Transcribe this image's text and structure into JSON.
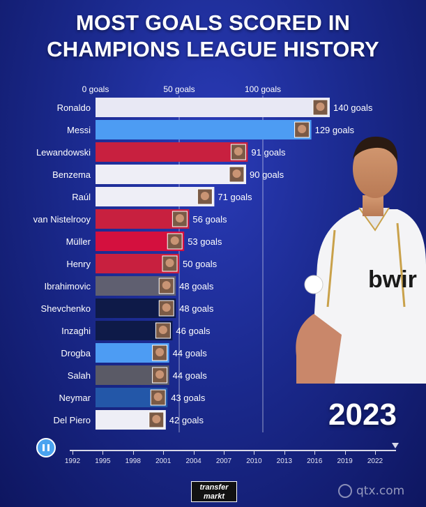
{
  "header": {
    "title_line1": "MOST GOALS SCORED IN",
    "title_line2": "CHAMPIONS LEAGUE HISTORY"
  },
  "year_display": "2023",
  "timeline": {
    "labels": [
      "1992",
      "1995",
      "1998",
      "2001",
      "2004",
      "2007",
      "2010",
      "2013",
      "2016",
      "2019",
      "2022"
    ]
  },
  "brand": {
    "line1": "transfer",
    "line2": "markt"
  },
  "watermark": "qtx.com",
  "chart_data": {
    "type": "bar",
    "orientation": "horizontal",
    "categories": [
      "Ronaldo",
      "Messi",
      "Lewandowski",
      "Benzema",
      "Raúl",
      "van Nistelrooy",
      "Müller",
      "Henry",
      "Ibrahimovic",
      "Shevchenko",
      "Inzaghi",
      "Drogba",
      "Salah",
      "Neymar",
      "Del Piero"
    ],
    "values": [
      140,
      129,
      91,
      90,
      71,
      56,
      53,
      50,
      48,
      48,
      46,
      44,
      44,
      43,
      42
    ],
    "value_labels": [
      "140 goals",
      "129 goals",
      "91 goals",
      "90 goals",
      "71 goals",
      "56 goals",
      "53 goals",
      "50 goals",
      "48 goals",
      "48 goals",
      "46 goals",
      "44 goals",
      "44 goals",
      "43 goals",
      "42 goals"
    ],
    "colors": [
      "#e8e8f4",
      "#4d9cf3",
      "#c8203f",
      "#eeeef6",
      "#eeeef6",
      "#c8203f",
      "#d4103e",
      "#c8203f",
      "#5f5f70",
      "#0e1a48",
      "#0e1a48",
      "#4d9cf3",
      "#5a5a66",
      "#2357a8",
      "#eeeef6"
    ],
    "xticks": [
      0,
      50,
      100
    ],
    "xtick_labels": [
      "0 goals",
      "50 goals",
      "100 goals"
    ],
    "xlim": [
      0,
      150
    ],
    "grid": true
  }
}
